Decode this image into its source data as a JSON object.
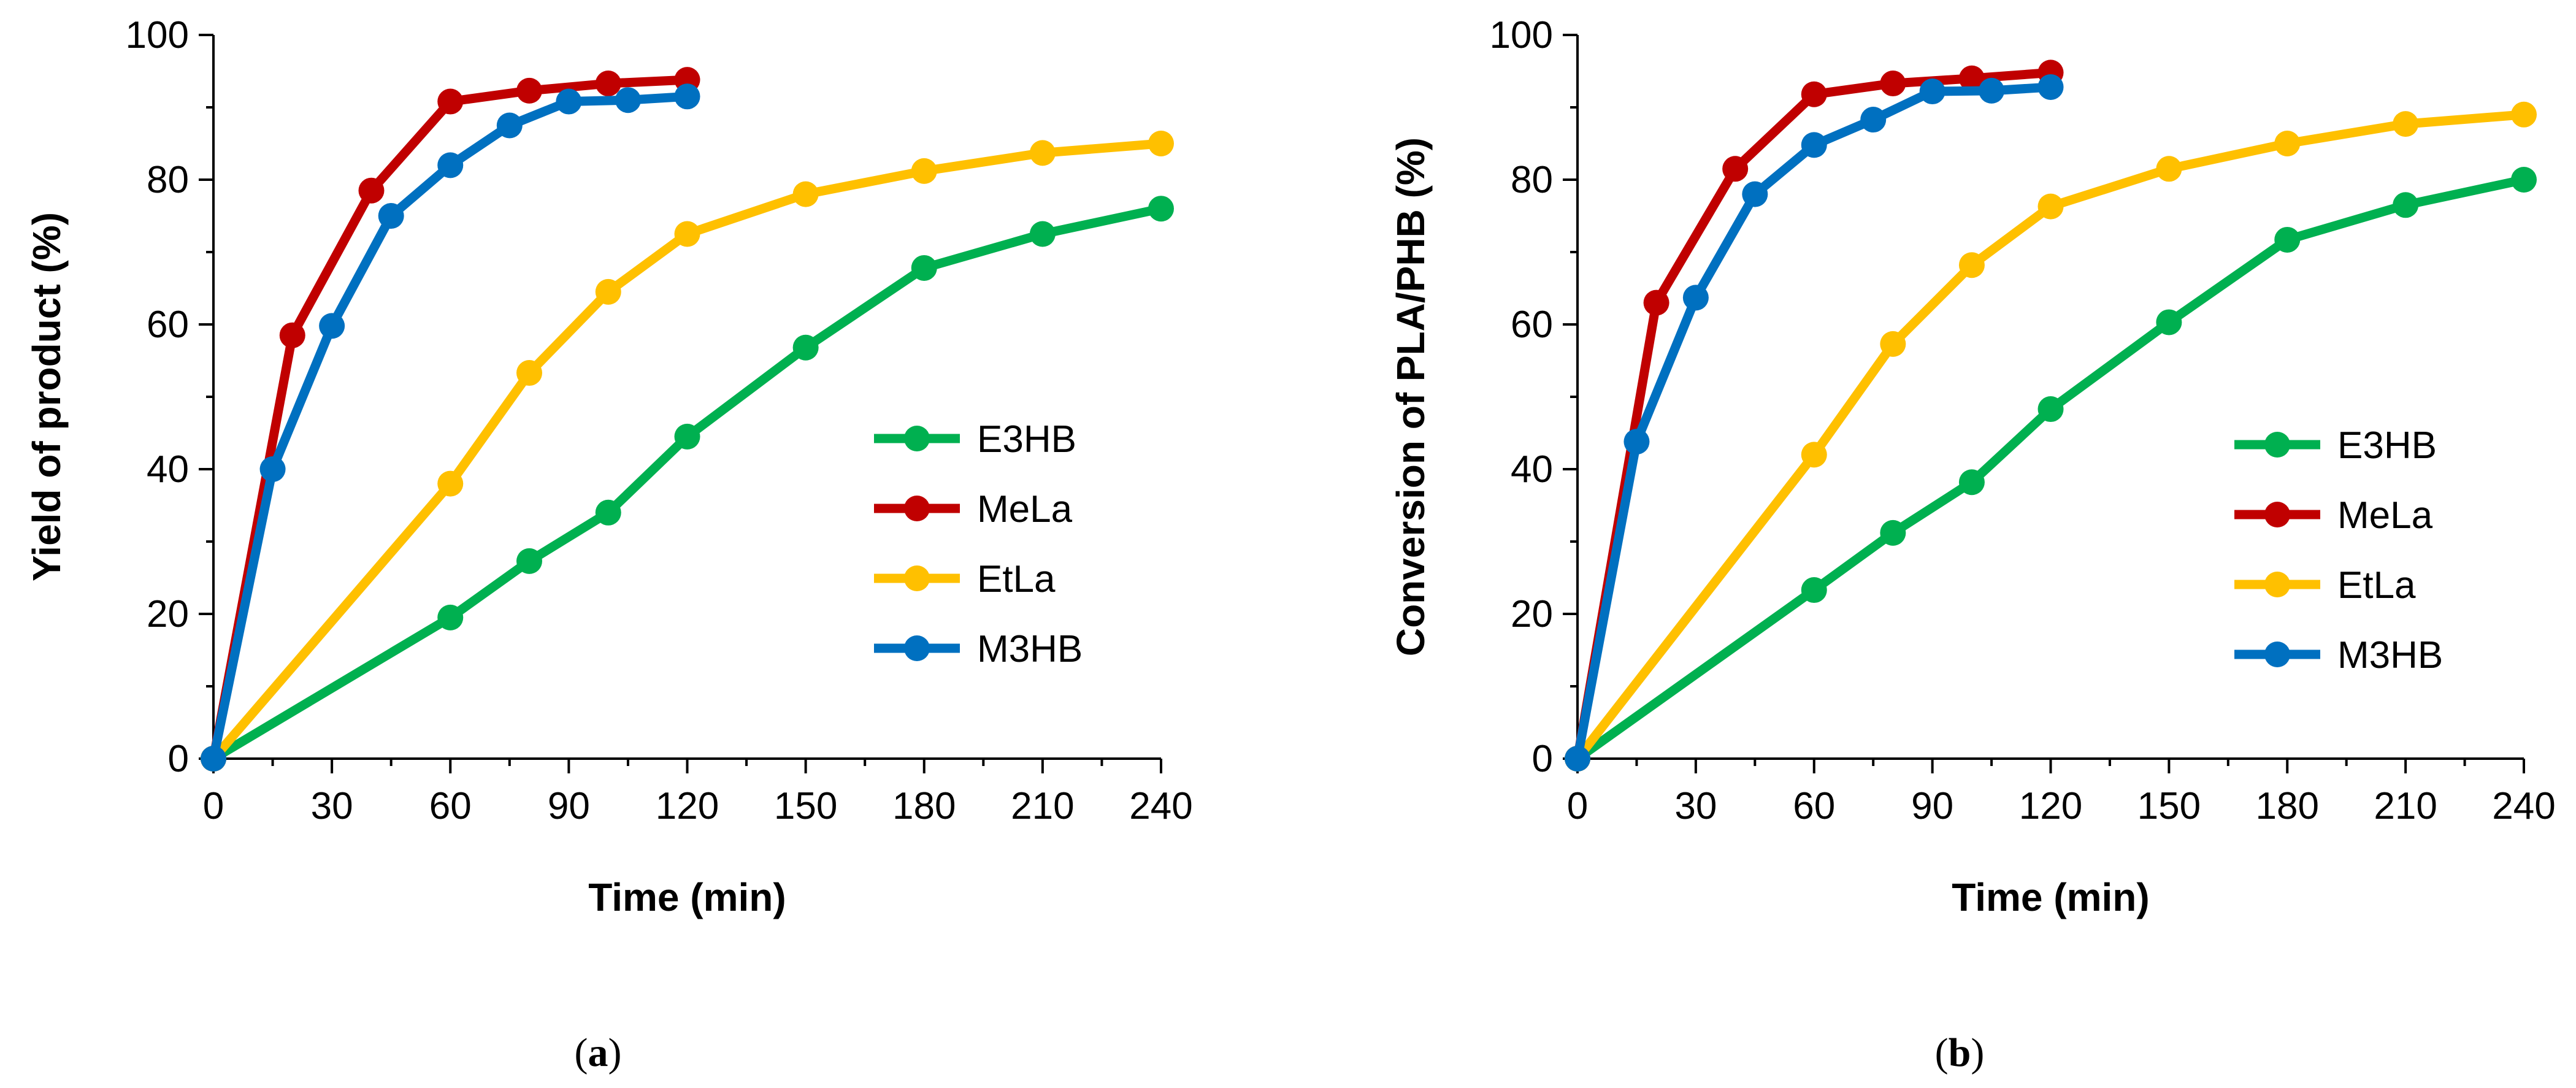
{
  "chart_data": [
    {
      "type": "line",
      "panel": "(a)",
      "panel_letter": "a",
      "xlabel": "Time (min)",
      "ylabel": "Yield of product (%)",
      "xlim": [
        0,
        240
      ],
      "ylim": [
        0,
        100
      ],
      "xticks": [
        0,
        30,
        60,
        90,
        120,
        150,
        180,
        210,
        240
      ],
      "yticks": [
        0,
        20,
        40,
        60,
        80,
        100
      ],
      "legend_position": "center-right",
      "series": [
        {
          "name": "E3HB",
          "color": "#00b050",
          "points": [
            [
              0,
              0
            ],
            [
              60,
              19.5
            ],
            [
              80,
              27.3
            ],
            [
              100,
              34
            ],
            [
              120,
              44.5
            ],
            [
              150,
              56.8
            ],
            [
              180,
              67.8
            ],
            [
              210,
              72.5
            ],
            [
              240,
              76
            ]
          ]
        },
        {
          "name": "MeLa",
          "color": "#c00000",
          "points": [
            [
              0,
              0
            ],
            [
              20,
              58.5
            ],
            [
              40,
              78.5
            ],
            [
              60,
              90.8
            ],
            [
              80,
              92.3
            ],
            [
              100,
              93.3
            ],
            [
              120,
              93.8
            ]
          ]
        },
        {
          "name": "EtLa",
          "color": "#ffc000",
          "points": [
            [
              0,
              0
            ],
            [
              60,
              38
            ],
            [
              80,
              53.3
            ],
            [
              100,
              64.5
            ],
            [
              120,
              72.5
            ],
            [
              150,
              78
            ],
            [
              180,
              81.2
            ],
            [
              210,
              83.7
            ],
            [
              240,
              85
            ]
          ]
        },
        {
          "name": "M3HB",
          "color": "#0070c0",
          "points": [
            [
              0,
              0
            ],
            [
              15,
              40
            ],
            [
              30,
              59.8
            ],
            [
              45,
              75
            ],
            [
              60,
              82
            ],
            [
              75,
              87.5
            ],
            [
              90,
              90.8
            ],
            [
              105,
              91
            ],
            [
              120,
              91.5
            ]
          ]
        }
      ]
    },
    {
      "type": "line",
      "panel": "(b)",
      "panel_letter": "b",
      "xlabel": "Time (min)",
      "ylabel": "Conversion of PLA/PHB (%)",
      "xlim": [
        0,
        240
      ],
      "ylim": [
        0,
        100
      ],
      "xticks": [
        0,
        30,
        60,
        90,
        120,
        150,
        180,
        210,
        240
      ],
      "yticks": [
        0,
        20,
        40,
        60,
        80,
        100
      ],
      "legend_position": "center-right",
      "series": [
        {
          "name": "E3HB",
          "color": "#00b050",
          "points": [
            [
              0,
              0
            ],
            [
              60,
              23.3
            ],
            [
              80,
              31.2
            ],
            [
              100,
              38.2
            ],
            [
              120,
              48.3
            ],
            [
              150,
              60.3
            ],
            [
              180,
              71.7
            ],
            [
              210,
              76.5
            ],
            [
              240,
              80
            ]
          ]
        },
        {
          "name": "MeLa",
          "color": "#c00000",
          "points": [
            [
              0,
              0
            ],
            [
              20,
              63
            ],
            [
              40,
              81.5
            ],
            [
              60,
              91.8
            ],
            [
              80,
              93.3
            ],
            [
              100,
              94
            ],
            [
              120,
              94.8
            ]
          ]
        },
        {
          "name": "EtLa",
          "color": "#ffc000",
          "points": [
            [
              0,
              0
            ],
            [
              60,
              42
            ],
            [
              80,
              57.3
            ],
            [
              100,
              68.2
            ],
            [
              120,
              76.3
            ],
            [
              150,
              81.5
            ],
            [
              180,
              85
            ],
            [
              210,
              87.7
            ],
            [
              240,
              89
            ]
          ]
        },
        {
          "name": "M3HB",
          "color": "#0070c0",
          "points": [
            [
              0,
              0
            ],
            [
              15,
              43.8
            ],
            [
              30,
              63.7
            ],
            [
              45,
              78
            ],
            [
              60,
              84.8
            ],
            [
              75,
              88.3
            ],
            [
              90,
              92.2
            ],
            [
              105,
              92.3
            ],
            [
              120,
              92.8
            ]
          ]
        }
      ]
    }
  ]
}
